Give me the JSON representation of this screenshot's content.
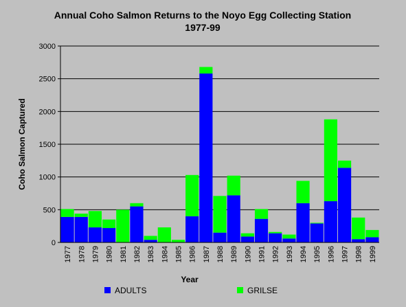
{
  "chart_data": {
    "type": "bar",
    "stacked": true,
    "title": "Annual Coho Salmon Returns to the Noyo Egg Collecting Station",
    "subtitle": "1977-99",
    "xlabel": "Year",
    "ylabel": "Coho Salmon Captured",
    "ylim": [
      0,
      3000
    ],
    "yticks": [
      0,
      500,
      1000,
      1500,
      2000,
      2500,
      3000
    ],
    "grid": true,
    "legend_position": "bottom",
    "categories": [
      "1977",
      "1978",
      "1979",
      "1980",
      "1981",
      "1982",
      "1983",
      "1984",
      "1985",
      "1986",
      "1987",
      "1988",
      "1989",
      "1990",
      "1991",
      "1992",
      "1993",
      "1994",
      "1995",
      "1996",
      "1997",
      "1998",
      "1999"
    ],
    "series": [
      {
        "name": "ADULTS",
        "color": "#0000ff",
        "values": [
          390,
          390,
          230,
          220,
          0,
          550,
          40,
          0,
          0,
          400,
          2580,
          150,
          720,
          90,
          360,
          140,
          60,
          600,
          290,
          630,
          1140,
          50,
          80
        ]
      },
      {
        "name": "GRILSE",
        "color": "#00ff00",
        "values": [
          120,
          50,
          250,
          130,
          500,
          50,
          60,
          230,
          40,
          630,
          100,
          560,
          300,
          50,
          150,
          20,
          60,
          340,
          10,
          1250,
          110,
          330,
          110
        ]
      }
    ]
  }
}
